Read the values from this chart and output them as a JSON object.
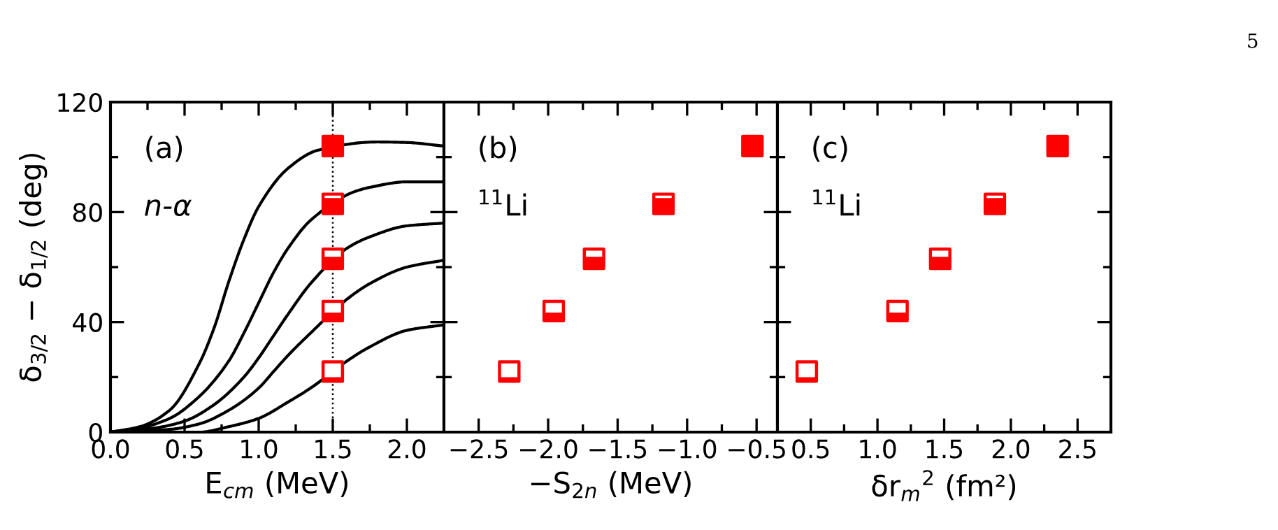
{
  "chart_data": [
    {
      "type": "line",
      "xlabel": "E$_{cm}$ (MeV)",
      "ylabel": "δ$_{3/2}$ − δ$_{1/2}$ (deg)",
      "annotations": [
        "(a)",
        "n-α"
      ],
      "xlim": [
        0,
        2.25
      ],
      "xticks": [
        {
          "value": 0,
          "label": "0.0"
        },
        0.5,
        {
          "value": 1,
          "label": "1.0"
        },
        1.5,
        {
          "value": 2,
          "label": "2.0"
        }
      ],
      "ylim": [
        0,
        120
      ],
      "yticks": [
        0,
        40,
        80,
        120
      ],
      "grid": false,
      "legend": false,
      "ref_lines": [
        {
          "axis": "x",
          "value": 1.5,
          "color": "#000000",
          "line_style": "dotted"
        }
      ],
      "series": [
        {
          "type": "line",
          "color": "#000000",
          "marker": "none",
          "line_style": "solid",
          "x": [
            0,
            0.2,
            0.4,
            0.6,
            0.7,
            0.8,
            0.9,
            1.0,
            1.2,
            1.4,
            1.8,
            2.0,
            2.25
          ],
          "values": [
            0,
            2,
            8,
            25,
            38,
            55,
            70,
            82,
            96,
            102.5,
            105.5,
            105.3,
            104
          ]
        },
        {
          "type": "line",
          "color": "#000000",
          "marker": "none",
          "line_style": "solid",
          "x": [
            0,
            0.2,
            0.4,
            0.6,
            0.8,
            0.9,
            1.0,
            1.1,
            1.2,
            1.35,
            1.65,
            1.75,
            2.0,
            2.25
          ],
          "values": [
            0,
            1.5,
            5,
            13,
            26,
            36,
            47,
            58,
            67,
            77,
            87.5,
            89,
            91,
            91
          ]
        },
        {
          "type": "line",
          "color": "#000000",
          "marker": "none",
          "line_style": "solid",
          "x": [
            0,
            0.3,
            0.5,
            0.7,
            0.9,
            1.0,
            1.1,
            1.2,
            1.35,
            1.6,
            1.75,
            2.0,
            2.25
          ],
          "values": [
            0,
            1.5,
            4,
            10,
            20,
            27,
            35,
            43,
            54,
            67,
            71,
            75,
            76
          ]
        },
        {
          "type": "line",
          "color": "#000000",
          "marker": "none",
          "line_style": "solid",
          "x": [
            0,
            0.4,
            0.6,
            0.8,
            1.0,
            1.1,
            1.2,
            1.35,
            1.6,
            1.75,
            2.0,
            2.25
          ],
          "values": [
            0,
            1,
            3,
            8,
            16,
            22,
            28,
            36,
            48.5,
            54,
            60,
            62.5
          ]
        },
        {
          "type": "line",
          "color": "#000000",
          "marker": "none",
          "line_style": "solid",
          "x": [
            0,
            0.6,
            0.8,
            1.0,
            1.2,
            1.35,
            1.6,
            1.75,
            2.0,
            2.25
          ],
          "values": [
            0,
            0,
            2,
            5,
            11,
            16,
            26,
            31,
            37,
            39
          ]
        },
        {
          "type": "scatter",
          "color": "#ff0000",
          "marker": "square",
          "x": [
            1.5,
            1.5,
            1.5,
            1.5,
            1.5
          ],
          "values": [
            104,
            83,
            63,
            44,
            22
          ]
        }
      ]
    },
    {
      "type": "scatter",
      "xlabel": "−S$_{2n}$ (MeV)",
      "annotations": [
        "(b)",
        "$^{11}$Li"
      ],
      "xlim": [
        -2.75,
        -0.35
      ],
      "xticks": [
        {
          "value": -2.5,
          "label": "−2.5"
        },
        {
          "value": -2,
          "label": "−2.0"
        },
        {
          "value": -1.5,
          "label": "−1.5"
        },
        {
          "value": -1,
          "label": "−1.0"
        },
        {
          "value": -0.5,
          "label": "−0.5"
        }
      ],
      "ylim": [
        0,
        120
      ],
      "yticks": [
        0,
        40,
        80,
        120
      ],
      "tick_labels": "x",
      "grid": false,
      "legend": false,
      "marker": "square",
      "series": [
        {
          "color": "#ff0000",
          "x": [
            -0.53,
            -1.17,
            -1.67,
            -1.96,
            -2.28
          ],
          "values": [
            104,
            83,
            63,
            44,
            22
          ]
        }
      ]
    },
    {
      "type": "scatter",
      "xlabel": "δr$_{m}$$^{2}$ (fm²)",
      "annotations": [
        "(c)",
        "$^{11}$Li",
        "5"
      ],
      "xlim": [
        0.25,
        2.75
      ],
      "xticks": [
        0.5,
        {
          "value": 1,
          "label": "1.0"
        },
        1.5,
        {
          "value": 2,
          "label": "2.0"
        },
        2.5
      ],
      "ylim": [
        0,
        120
      ],
      "yticks": [
        0,
        40,
        80,
        120
      ],
      "tick_labels": "x",
      "grid": false,
      "legend": false,
      "marker": "square",
      "series": [
        {
          "color": "#ff0000",
          "x": [
            2.35,
            1.88,
            1.47,
            1.15,
            0.47
          ],
          "values": [
            104,
            83,
            63,
            44,
            22
          ]
        }
      ]
    }
  ]
}
